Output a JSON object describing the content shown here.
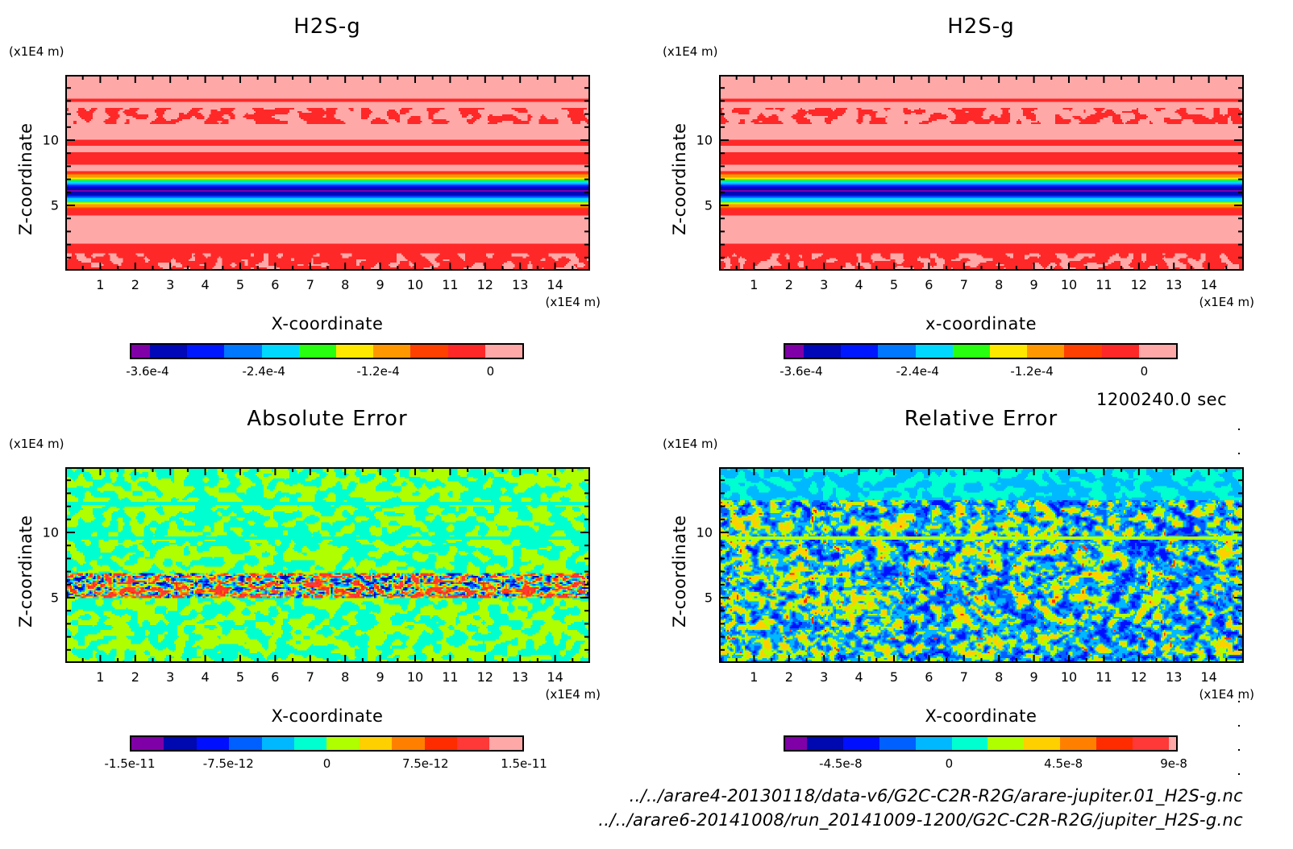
{
  "chart_data": [
    {
      "type": "heatmap",
      "title": "H2S-g",
      "xlabel": "X-coordinate",
      "ylabel": "Z-coordinate",
      "x_unit": "(x1E4 m)",
      "y_unit": "(x1E4 m)",
      "xlim": [
        0,
        15
      ],
      "ylim": [
        0,
        15
      ],
      "x_ticks": [
        "1",
        "2",
        "3",
        "4",
        "5",
        "6",
        "7",
        "8",
        "9",
        "10",
        "11",
        "12",
        "13",
        "14"
      ],
      "y_ticks": [
        "5",
        "10"
      ],
      "field": "layered",
      "colorbar": {
        "levels": [
          "#8000a8",
          "#0008b8",
          "#0018ff",
          "#0078ff",
          "#00d8ff",
          "#28ff10",
          "#ffe800",
          "#ff9800",
          "#ff4000",
          "#ff2828",
          "#ffa8a8"
        ],
        "weights": [
          0.5,
          1,
          1,
          1,
          1,
          1,
          1,
          1,
          1,
          1,
          1
        ],
        "tick_labels": [
          "-3.6e-4",
          "-2.4e-4",
          "-1.2e-4",
          "0"
        ],
        "tick_positions": [
          0.045,
          0.34,
          0.63,
          0.915
        ]
      }
    },
    {
      "type": "heatmap",
      "title": "H2S-g",
      "xlabel": "x-coordinate",
      "ylabel": "Z-coordinate",
      "x_unit": "(x1E4 m)",
      "y_unit": "(x1E4 m)",
      "xlim": [
        0,
        15
      ],
      "ylim": [
        0,
        15
      ],
      "x_ticks": [
        "1",
        "2",
        "3",
        "4",
        "5",
        "6",
        "7",
        "8",
        "9",
        "10",
        "11",
        "12",
        "13",
        "14"
      ],
      "y_ticks": [
        "5",
        "10"
      ],
      "field": "layered",
      "colorbar": {
        "levels": [
          "#8000a8",
          "#0008b8",
          "#0018ff",
          "#0078ff",
          "#00d8ff",
          "#28ff10",
          "#ffe800",
          "#ff9800",
          "#ff4000",
          "#ff2828",
          "#ffa8a8"
        ],
        "weights": [
          0.5,
          1,
          1,
          1,
          1,
          1,
          1,
          1,
          1,
          1,
          1
        ],
        "tick_labels": [
          "-3.6e-4",
          "-2.4e-4",
          "-1.2e-4",
          "0"
        ],
        "tick_positions": [
          0.045,
          0.34,
          0.63,
          0.915
        ]
      }
    },
    {
      "type": "heatmap",
      "title": "Absolute Error",
      "xlabel": "X-coordinate",
      "ylabel": "Z-coordinate",
      "x_unit": "(x1E4 m)",
      "y_unit": "(x1E4 m)",
      "xlim": [
        0,
        15
      ],
      "ylim": [
        0,
        15
      ],
      "x_ticks": [
        "1",
        "2",
        "3",
        "4",
        "5",
        "6",
        "7",
        "8",
        "9",
        "10",
        "11",
        "12",
        "13",
        "14"
      ],
      "y_ticks": [
        "5",
        "10"
      ],
      "field": "abs_error",
      "colorbar": {
        "levels": [
          "#8000a8",
          "#0008b0",
          "#0010ff",
          "#0060ff",
          "#00b8ff",
          "#00ffd0",
          "#b0ff00",
          "#ffd000",
          "#ff8000",
          "#ff2c00",
          "#ff3838",
          "#ffa8a8"
        ],
        "weights": [
          1,
          1,
          1,
          1,
          1,
          1,
          1,
          1,
          1,
          1,
          1,
          1
        ],
        "tick_labels": [
          "-1.5e-11",
          "-7.5e-12",
          "0",
          "7.5e-12",
          "1.5e-11"
        ],
        "tick_positions": [
          0.0,
          0.25,
          0.5,
          0.75,
          1.0
        ]
      }
    },
    {
      "type": "heatmap",
      "title": "Relative Error",
      "xlabel": "X-coordinate",
      "ylabel": "Z-coordinate",
      "x_unit": "(x1E4 m)",
      "y_unit": "(x1E4 m)",
      "xlim": [
        0,
        15
      ],
      "ylim": [
        0,
        15
      ],
      "x_ticks": [
        "1",
        "2",
        "3",
        "4",
        "5",
        "6",
        "7",
        "8",
        "9",
        "10",
        "11",
        "12",
        "13",
        "14"
      ],
      "y_ticks": [
        "5",
        "10"
      ],
      "field": "rel_error",
      "colorbar": {
        "levels": [
          "#8000a8",
          "#0008b0",
          "#0010ff",
          "#0060ff",
          "#00b8ff",
          "#00ffd0",
          "#b0ff00",
          "#ffd000",
          "#ff8000",
          "#ff2c00",
          "#ff3838",
          "#ffa8a8"
        ],
        "weights": [
          0.6,
          1,
          1,
          1,
          1,
          1,
          1,
          1,
          1,
          1,
          1,
          0.2
        ],
        "tick_labels": [
          "-4.5e-8",
          "0",
          "4.5e-8",
          "9e-8"
        ],
        "tick_positions": [
          0.145,
          0.42,
          0.71,
          0.99
        ]
      }
    }
  ],
  "time_label": "1200240.0 sec",
  "file_paths": [
    "../../arare4-20130118/data-v6/G2C-C2R-R2G/arare-jupiter.01_H2S-g.nc",
    "../../arare6-20141008/run_20141009-1200/G2C-C2R-R2G/jupiter_H2S-g.nc"
  ]
}
